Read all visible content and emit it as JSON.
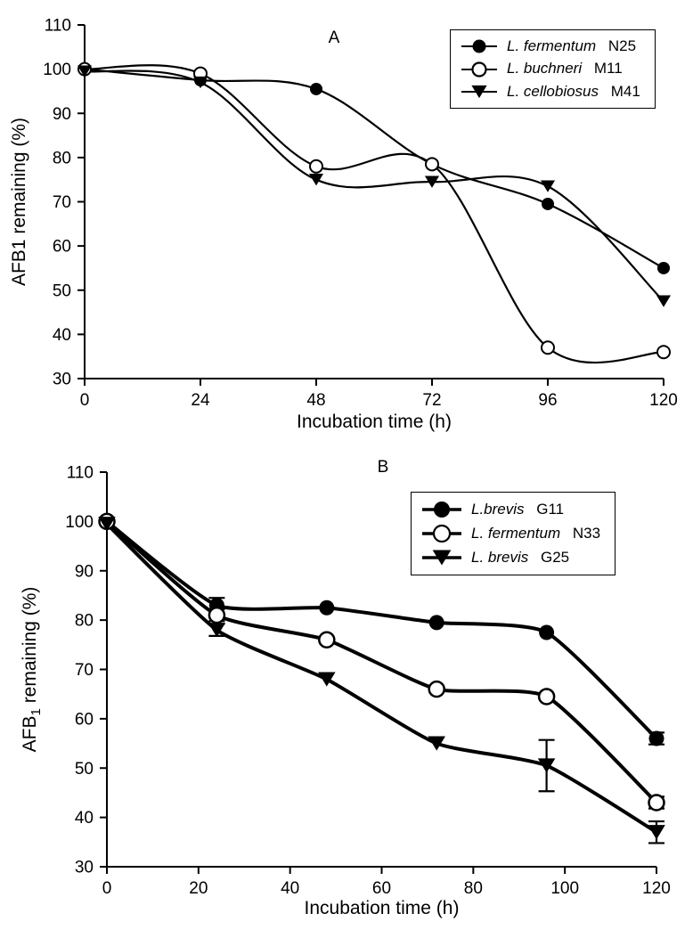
{
  "figure": {
    "background": "#ffffff",
    "ink": "#000000"
  },
  "chart_data": [
    {
      "type": "line",
      "panel_label": "A",
      "title": "",
      "xlabel": "Incubation time (h)",
      "ylabel_parts": [
        [
          "AFB1 remaining (%)",
          false
        ]
      ],
      "xlim": [
        0,
        120
      ],
      "ylim": [
        30,
        110
      ],
      "xticks": [
        0,
        24,
        48,
        72,
        96,
        120
      ],
      "yticks": [
        30,
        40,
        50,
        60,
        70,
        80,
        90,
        100,
        110
      ],
      "x": [
        0,
        24,
        48,
        72,
        96,
        120
      ],
      "grid": false,
      "legend_position": "top-right",
      "series": [
        {
          "label_italic": "L. fermentum",
          "label_regular": "N25",
          "marker": "filled-circle",
          "values": [
            100,
            97.5,
            95.5,
            78.5,
            69.5,
            55
          ],
          "errors": [
            0,
            0,
            0,
            0,
            0,
            0
          ]
        },
        {
          "label_italic": "L. buchneri",
          "label_regular": "M11",
          "marker": "open-circle",
          "values": [
            100,
            99,
            78,
            78.5,
            37,
            36
          ],
          "errors": [
            0,
            0,
            0,
            0,
            0,
            0
          ]
        },
        {
          "label_italic": "L. cellobiosus",
          "label_regular": "M41",
          "marker": "filled-triangle-down",
          "values": [
            99.5,
            97,
            75,
            74.5,
            73.5,
            47.5
          ],
          "errors": [
            0,
            0,
            0,
            0,
            0,
            0
          ]
        }
      ]
    },
    {
      "type": "line",
      "panel_label": "B",
      "title": "",
      "xlabel": "Incubation time (h)",
      "ylabel_parts": [
        [
          "AFB",
          false
        ],
        [
          "1",
          true
        ],
        [
          " remaining (%)",
          false
        ]
      ],
      "xlim": [
        0,
        120
      ],
      "ylim": [
        30,
        110
      ],
      "xticks": [
        0,
        20,
        40,
        60,
        80,
        100,
        120
      ],
      "yticks": [
        30,
        40,
        50,
        60,
        70,
        80,
        90,
        100,
        110
      ],
      "x": [
        0,
        24,
        48,
        72,
        96,
        120
      ],
      "grid": false,
      "legend_position": "top-right",
      "series": [
        {
          "label_italic": "L.brevis",
          "label_regular": "G11",
          "marker": "filled-circle",
          "values": [
            100,
            83,
            82.5,
            79.5,
            77.5,
            56
          ],
          "errors": [
            0,
            1.5,
            0,
            0,
            0,
            1.2
          ]
        },
        {
          "label_italic": "L. fermentum",
          "label_regular": "N33",
          "marker": "open-circle",
          "values": [
            100,
            81,
            76,
            66,
            64.5,
            43
          ],
          "errors": [
            0,
            1.2,
            0,
            0,
            0,
            1.2
          ]
        },
        {
          "label_italic": "L. brevis",
          "label_regular": "G25",
          "marker": "filled-triangle-down",
          "values": [
            99.5,
            78,
            68,
            55,
            50.5,
            37
          ],
          "errors": [
            0,
            1.2,
            0,
            0,
            5.2,
            2.2
          ]
        }
      ]
    }
  ]
}
